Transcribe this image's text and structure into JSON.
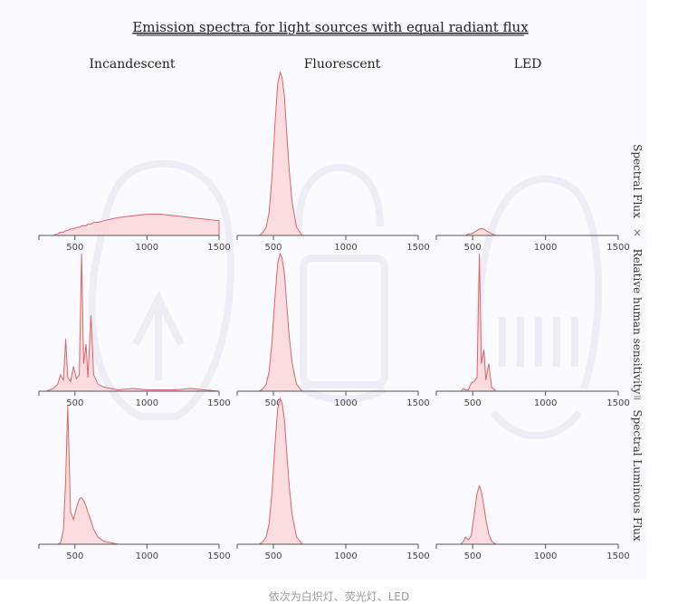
{
  "caption": "依次为白炽灯、荧光灯、LED",
  "chart_data": {
    "type": "area",
    "title": "Emission spectra for light sources with equal radiant flux",
    "columns": [
      "Incandescent",
      "Fluorescent",
      "LED"
    ],
    "rows": [
      "Spectral Flux",
      "Relative human sensitivity",
      "Spectral Luminous Flux"
    ],
    "operators": [
      "×",
      "="
    ],
    "x_ticks": [
      500,
      1000,
      1500
    ],
    "xlim": [
      250,
      1500
    ],
    "colors": {
      "line": "#d9646b",
      "fill": "#fbd7d9",
      "axis": "#555555",
      "background": "#fbfaff",
      "bulb": "#eeedf5"
    },
    "x": [
      300,
      350,
      380,
      400,
      420,
      436,
      450,
      470,
      490,
      510,
      530,
      546,
      560,
      577,
      590,
      611,
      630,
      660,
      700,
      750,
      800,
      900,
      1000,
      1100,
      1200,
      1300,
      1400,
      1500
    ],
    "panels": [
      [
        {
          "name": "",
          "y": [
            0,
            0,
            0.01,
            0.02,
            0.02,
            0.03,
            0.03,
            0.04,
            0.04,
            0.05,
            0.05,
            0.06,
            0.06,
            0.06,
            0.07,
            0.07,
            0.08,
            0.08,
            0.09,
            0.1,
            0.11,
            0.12,
            0.13,
            0.13,
            0.12,
            0.11,
            0.1,
            0.09
          ]
        },
        {
          "name": "",
          "y": [
            0,
            0,
            0,
            0,
            0.01,
            0.03,
            0.05,
            0.14,
            0.35,
            0.67,
            0.93,
            1.0,
            0.97,
            0.85,
            0.66,
            0.38,
            0.2,
            0.05,
            0,
            0,
            0,
            0,
            0,
            0,
            0,
            0,
            0,
            0
          ]
        },
        {
          "name": "",
          "y": [
            0,
            0,
            0,
            0,
            0,
            0,
            0,
            0.01,
            0.01,
            0.02,
            0.03,
            0.04,
            0.04,
            0.04,
            0.03,
            0.02,
            0.01,
            0,
            0,
            0,
            0,
            0,
            0,
            0,
            0,
            0,
            0,
            0
          ]
        }
      ],
      [
        {
          "name": "",
          "y": [
            0,
            0.02,
            0.05,
            0.12,
            0.08,
            0.38,
            0.1,
            0.07,
            0.18,
            0.09,
            0.12,
            1.0,
            0.2,
            0.34,
            0.1,
            0.55,
            0.12,
            0.05,
            0.03,
            0.02,
            0.01,
            0.02,
            0.01,
            0.01,
            0.01,
            0.02,
            0.01,
            0
          ]
        },
        {
          "name": "",
          "y": [
            0,
            0,
            0,
            0,
            0.01,
            0.03,
            0.05,
            0.14,
            0.35,
            0.67,
            0.93,
            1.0,
            0.97,
            0.85,
            0.66,
            0.38,
            0.2,
            0.05,
            0,
            0,
            0,
            0,
            0,
            0,
            0,
            0,
            0,
            0
          ]
        },
        {
          "name": "",
          "y": [
            0,
            0,
            0,
            0,
            0,
            0.02,
            0.01,
            0.01,
            0.06,
            0.07,
            0.1,
            1.0,
            0.2,
            0.3,
            0.08,
            0.2,
            0.03,
            0,
            0,
            0,
            0,
            0,
            0,
            0,
            0,
            0,
            0,
            0
          ]
        }
      ],
      [
        {
          "name": "",
          "y": [
            0,
            0,
            0,
            0.01,
            0.1,
            0.45,
            0.95,
            0.22,
            0.17,
            0.25,
            0.31,
            0.32,
            0.3,
            0.26,
            0.22,
            0.16,
            0.1,
            0.05,
            0.02,
            0.01,
            0,
            0,
            0,
            0,
            0,
            0,
            0,
            0
          ]
        },
        {
          "name": "",
          "y": [
            0,
            0,
            0,
            0,
            0.01,
            0.03,
            0.05,
            0.14,
            0.35,
            0.67,
            0.93,
            1.0,
            0.97,
            0.85,
            0.66,
            0.38,
            0.2,
            0.05,
            0,
            0,
            0,
            0,
            0,
            0,
            0,
            0,
            0,
            0
          ]
        },
        {
          "name": "",
          "y": [
            0,
            0,
            0,
            0,
            0,
            0.02,
            0.05,
            0.03,
            0.06,
            0.2,
            0.35,
            0.4,
            0.36,
            0.26,
            0.17,
            0.07,
            0.02,
            0,
            0,
            0,
            0,
            0,
            0,
            0,
            0,
            0,
            0,
            0
          ]
        }
      ]
    ]
  }
}
